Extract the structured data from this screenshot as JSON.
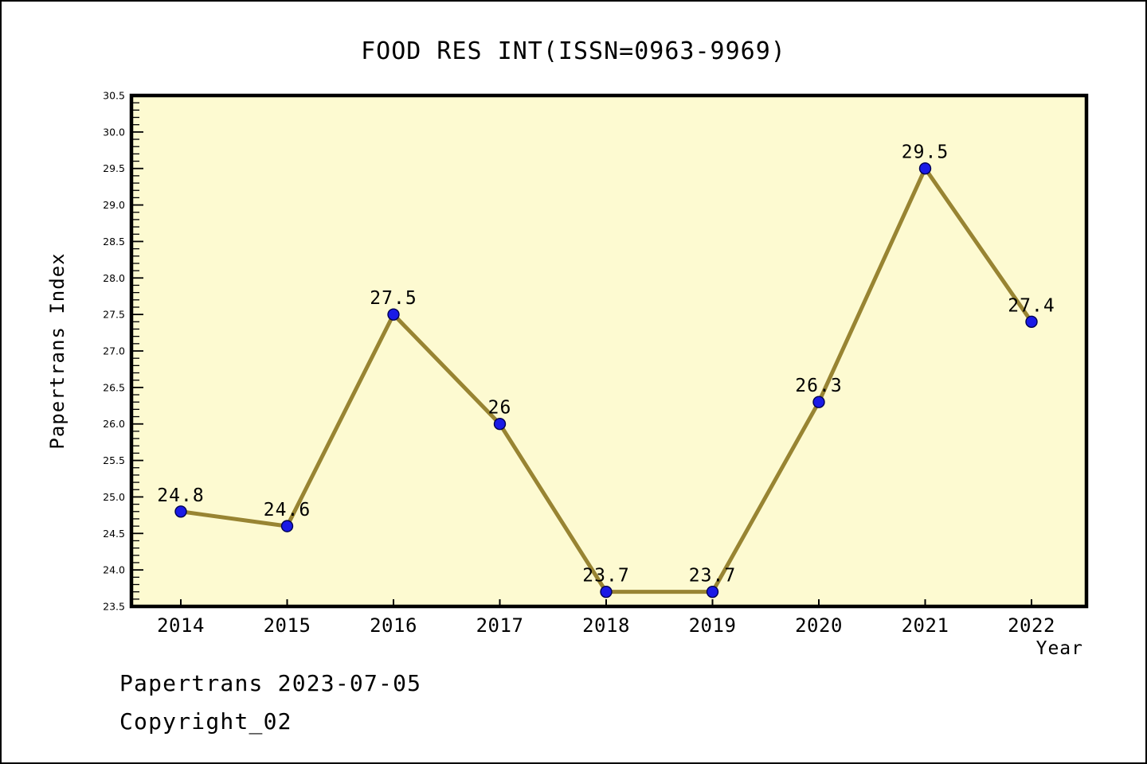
{
  "chart_data": {
    "type": "line",
    "title": "FOOD RES INT(ISSN=0963-9969)",
    "x": [
      "2014",
      "2015",
      "2016",
      "2017",
      "2018",
      "2019",
      "2020",
      "2021",
      "2022"
    ],
    "series": [
      {
        "name": "Papertrans Index",
        "values": [
          24.8,
          24.6,
          27.5,
          26,
          23.7,
          23.7,
          26.3,
          29.5,
          27.4
        ],
        "point_labels": [
          "24.8",
          "24.6",
          "27.5",
          "26",
          "23.7",
          "23.7",
          "26.3",
          "29.5",
          "27.4"
        ]
      }
    ],
    "xlabel": "Year",
    "ylabel": "Papertrans Index",
    "ylim": [
      23.5,
      30.5
    ],
    "y_major_step": 0.5,
    "y_minor_step": 0.1,
    "grid": "off",
    "legend": "none",
    "colors": {
      "plot_bg": "#FDFAD1",
      "line": "#988432",
      "marker_fill": "#1A1AE6",
      "marker_edge": "#000050",
      "frame": "#000000",
      "text": "#000000"
    }
  },
  "footer": {
    "line1": "Papertrans 2023-07-05",
    "line2": "Copyright_02"
  }
}
